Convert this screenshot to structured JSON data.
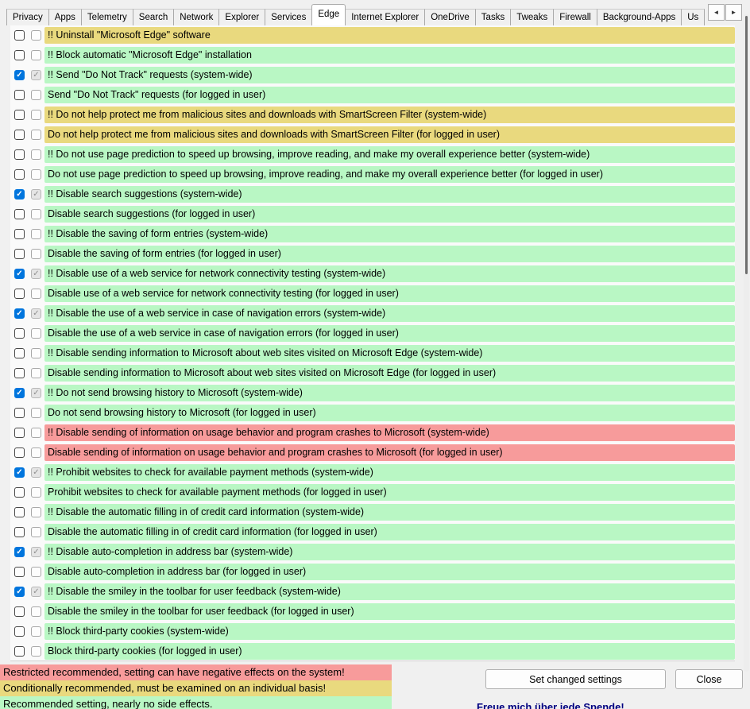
{
  "colors": {
    "recommended": "#b9f7c4",
    "conditional": "#e9d97e",
    "restricted": "#f79b9b",
    "checkbox_accent": "#0075dd"
  },
  "tab_bar": {
    "tabs": [
      {
        "label": "Privacy",
        "active": false
      },
      {
        "label": "Apps",
        "active": false
      },
      {
        "label": "Telemetry",
        "active": false
      },
      {
        "label": "Search",
        "active": false
      },
      {
        "label": "Network",
        "active": false
      },
      {
        "label": "Explorer",
        "active": false
      },
      {
        "label": "Services",
        "active": false
      },
      {
        "label": "Edge",
        "active": true
      },
      {
        "label": "Internet Explorer",
        "active": false
      },
      {
        "label": "OneDrive",
        "active": false
      },
      {
        "label": "Tasks",
        "active": false
      },
      {
        "label": "Tweaks",
        "active": false
      },
      {
        "label": "Firewall",
        "active": false
      },
      {
        "label": "Background-Apps",
        "active": false
      },
      {
        "label": "Us",
        "active": false
      }
    ],
    "scroll_left_icon": "◄",
    "scroll_right_icon": "►"
  },
  "settings": {
    "rows": [
      {
        "text": "!! Uninstall \"Microsoft Edge\" software",
        "level": "conditional",
        "checked": false
      },
      {
        "text": "!! Block automatic \"Microsoft Edge\" installation",
        "level": "recommended",
        "checked": false
      },
      {
        "text": "!! Send \"Do Not Track\" requests (system-wide)",
        "level": "recommended",
        "checked": true
      },
      {
        "text": "Send \"Do Not Track\" requests (for logged in user)",
        "level": "recommended",
        "checked": false
      },
      {
        "text": "!! Do not help protect me from malicious sites and downloads with SmartScreen Filter (system-wide)",
        "level": "conditional",
        "checked": false
      },
      {
        "text": "Do not help protect me from malicious sites and downloads with SmartScreen Filter (for logged in user)",
        "level": "conditional",
        "checked": false
      },
      {
        "text": "!! Do not use page prediction to speed up browsing, improve reading, and make my overall experience better (system-wide)",
        "level": "recommended",
        "checked": false
      },
      {
        "text": "Do not use page prediction to speed up browsing, improve reading, and make my overall experience better (for logged in user)",
        "level": "recommended",
        "checked": false
      },
      {
        "text": "!! Disable search suggestions (system-wide)",
        "level": "recommended",
        "checked": true
      },
      {
        "text": "Disable search suggestions (for logged in user)",
        "level": "recommended",
        "checked": false
      },
      {
        "text": "!! Disable the saving of form entries (system-wide)",
        "level": "recommended",
        "checked": false
      },
      {
        "text": "Disable the saving of form entries (for logged in user)",
        "level": "recommended",
        "checked": false
      },
      {
        "text": "!! Disable use of a web service for network connectivity testing (system-wide)",
        "level": "recommended",
        "checked": true
      },
      {
        "text": "Disable use of a web service for network connectivity testing (for logged in user)",
        "level": "recommended",
        "checked": false
      },
      {
        "text": "!! Disable the use of a web service in case of navigation errors (system-wide)",
        "level": "recommended",
        "checked": true
      },
      {
        "text": "Disable the use of a web service in case of navigation errors (for logged in user)",
        "level": "recommended",
        "checked": false
      },
      {
        "text": "!! Disable sending information to Microsoft about web sites visited on Microsoft Edge (system-wide)",
        "level": "recommended",
        "checked": false
      },
      {
        "text": "Disable sending information to Microsoft about web sites visited on Microsoft Edge (for logged in user)",
        "level": "recommended",
        "checked": false
      },
      {
        "text": "!! Do not send browsing history to Microsoft (system-wide)",
        "level": "recommended",
        "checked": true
      },
      {
        "text": "Do not send browsing history to Microsoft (for logged in user)",
        "level": "recommended",
        "checked": false
      },
      {
        "text": "!! Disable sending of information on usage behavior and program crashes to Microsoft (system-wide)",
        "level": "restricted",
        "checked": false
      },
      {
        "text": "Disable sending of information on usage behavior and program crashes to Microsoft (for logged in user)",
        "level": "restricted",
        "checked": false
      },
      {
        "text": "!! Prohibit websites to check for available payment methods (system-wide)",
        "level": "recommended",
        "checked": true
      },
      {
        "text": "Prohibit websites to check for available payment methods (for logged in user)",
        "level": "recommended",
        "checked": false
      },
      {
        "text": "!! Disable the automatic filling in of credit card information (system-wide)",
        "level": "recommended",
        "checked": false
      },
      {
        "text": "Disable the automatic filling in of credit card information (for logged in user)",
        "level": "recommended",
        "checked": false
      },
      {
        "text": "!! Disable auto-completion in address bar (system-wide)",
        "level": "recommended",
        "checked": true
      },
      {
        "text": "Disable auto-completion in address bar (for logged in user)",
        "level": "recommended",
        "checked": false
      },
      {
        "text": "!! Disable the smiley in the toolbar for user feedback (system-wide)",
        "level": "recommended",
        "checked": true
      },
      {
        "text": "Disable the smiley in the toolbar for user feedback (for logged in user)",
        "level": "recommended",
        "checked": false
      },
      {
        "text": "!! Block third-party cookies (system-wide)",
        "level": "recommended",
        "checked": false
      },
      {
        "text": "Block third-party cookies (for logged in user)",
        "level": "recommended",
        "checked": false
      }
    ],
    "check_icon": "✓"
  },
  "legend": {
    "items": [
      {
        "text": "Restricted recommended, setting can have negative effects on the system!",
        "level": "restricted"
      },
      {
        "text": "Conditionally recommended, must be examined on an individual basis!",
        "level": "conditional"
      },
      {
        "text": "Recommended setting, nearly no side effects.",
        "level": "recommended"
      }
    ]
  },
  "footer": {
    "set_button_label": "Set changed settings",
    "close_button_label": "Close",
    "donation_text": "Freue mich über jede Spende!"
  }
}
